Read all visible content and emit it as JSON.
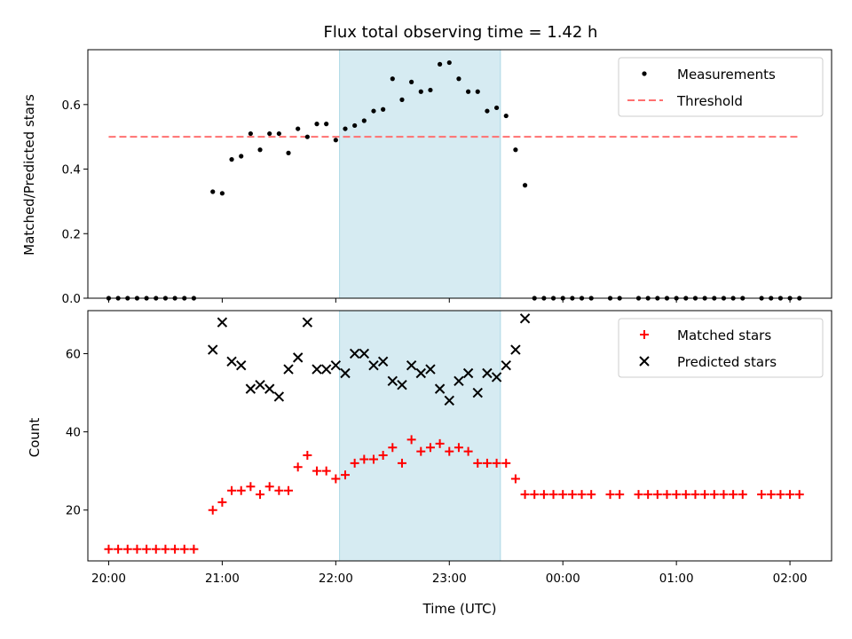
{
  "chart_data": [
    {
      "type": "scatter",
      "title": "Flux total observing time = 1.42 h",
      "xlabel": "",
      "ylabel": "Matched/Predicted stars",
      "xlim": [
        "19:49",
        "02:22"
      ],
      "ylim": [
        0,
        0.77
      ],
      "yticks": [
        0.0,
        0.2,
        0.4,
        0.6
      ],
      "ytick_labels": [
        "0.0",
        "0.2",
        "0.4",
        "0.6"
      ],
      "xticks": [
        "20:00",
        "21:00",
        "22:00",
        "23:00",
        "00:00",
        "01:00",
        "02:00"
      ],
      "shaded_interval": {
        "start": "22:02",
        "end": "23:27",
        "color": "#add8e6"
      },
      "legend": {
        "position": "upper right",
        "entries": [
          "Measurements",
          "Threshold"
        ]
      },
      "series": [
        {
          "name": "Measurements",
          "marker": "dot",
          "color": "#000000",
          "points": [
            [
              "20:00",
              0.0
            ],
            [
              "20:05",
              0.0
            ],
            [
              "20:10",
              0.0
            ],
            [
              "20:15",
              0.0
            ],
            [
              "20:20",
              0.0
            ],
            [
              "20:25",
              0.0
            ],
            [
              "20:30",
              0.0
            ],
            [
              "20:35",
              0.0
            ],
            [
              "20:40",
              0.0
            ],
            [
              "20:45",
              0.0
            ],
            [
              "20:55",
              0.33
            ],
            [
              "21:00",
              0.325
            ],
            [
              "21:05",
              0.43
            ],
            [
              "21:10",
              0.44
            ],
            [
              "21:15",
              0.51
            ],
            [
              "21:20",
              0.46
            ],
            [
              "21:25",
              0.51
            ],
            [
              "21:30",
              0.51
            ],
            [
              "21:35",
              0.45
            ],
            [
              "21:40",
              0.525
            ],
            [
              "21:45",
              0.5
            ],
            [
              "21:50",
              0.54
            ],
            [
              "21:55",
              0.54
            ],
            [
              "22:00",
              0.49
            ],
            [
              "22:05",
              0.525
            ],
            [
              "22:10",
              0.535
            ],
            [
              "22:15",
              0.55
            ],
            [
              "22:20",
              0.58
            ],
            [
              "22:25",
              0.585
            ],
            [
              "22:30",
              0.68
            ],
            [
              "22:35",
              0.615
            ],
            [
              "22:40",
              0.67
            ],
            [
              "22:45",
              0.64
            ],
            [
              "22:50",
              0.645
            ],
            [
              "22:55",
              0.725
            ],
            [
              "23:00",
              0.73
            ],
            [
              "23:05",
              0.68
            ],
            [
              "23:10",
              0.64
            ],
            [
              "23:15",
              0.64
            ],
            [
              "23:20",
              0.58
            ],
            [
              "23:25",
              0.59
            ],
            [
              "23:30",
              0.565
            ],
            [
              "23:35",
              0.46
            ],
            [
              "23:40",
              0.35
            ],
            [
              "23:45",
              0.0
            ],
            [
              "23:50",
              0.0
            ],
            [
              "23:55",
              0.0
            ],
            [
              "00:00",
              0.0
            ],
            [
              "00:05",
              0.0
            ],
            [
              "00:10",
              0.0
            ],
            [
              "00:15",
              0.0
            ],
            [
              "00:25",
              0.0
            ],
            [
              "00:30",
              0.0
            ],
            [
              "00:40",
              0.0
            ],
            [
              "00:45",
              0.0
            ],
            [
              "00:50",
              0.0
            ],
            [
              "00:55",
              0.0
            ],
            [
              "01:00",
              0.0
            ],
            [
              "01:05",
              0.0
            ],
            [
              "01:10",
              0.0
            ],
            [
              "01:15",
              0.0
            ],
            [
              "01:20",
              0.0
            ],
            [
              "01:25",
              0.0
            ],
            [
              "01:30",
              0.0
            ],
            [
              "01:35",
              0.0
            ],
            [
              "01:45",
              0.0
            ],
            [
              "01:50",
              0.0
            ],
            [
              "01:55",
              0.0
            ],
            [
              "02:00",
              0.0
            ],
            [
              "02:05",
              0.0
            ]
          ]
        },
        {
          "name": "Threshold",
          "type": "line",
          "style": "dashed",
          "color": "#ff7070",
          "points": [
            [
              "20:00",
              0.5
            ],
            [
              "02:05",
              0.5
            ]
          ]
        }
      ]
    },
    {
      "type": "scatter",
      "title": "",
      "xlabel": "Time (UTC)",
      "ylabel": "Count",
      "xlim": [
        "19:49",
        "02:22"
      ],
      "ylim": [
        7,
        71
      ],
      "yticks": [
        20,
        40,
        60
      ],
      "ytick_labels": [
        "20",
        "40",
        "60"
      ],
      "xticks": [
        "20:00",
        "21:00",
        "22:00",
        "23:00",
        "00:00",
        "01:00",
        "02:00"
      ],
      "xtick_labels": [
        "20:00",
        "21:00",
        "22:00",
        "23:00",
        "00:00",
        "01:00",
        "02:00"
      ],
      "shaded_interval": {
        "start": "22:02",
        "end": "23:27",
        "color": "#add8e6"
      },
      "legend": {
        "position": "upper right",
        "entries": [
          "Matched stars",
          "Predicted stars"
        ]
      },
      "series": [
        {
          "name": "Matched stars",
          "marker": "plus",
          "color": "#ff0000",
          "points": [
            [
              "20:00",
              10
            ],
            [
              "20:05",
              10
            ],
            [
              "20:10",
              10
            ],
            [
              "20:15",
              10
            ],
            [
              "20:20",
              10
            ],
            [
              "20:25",
              10
            ],
            [
              "20:30",
              10
            ],
            [
              "20:35",
              10
            ],
            [
              "20:40",
              10
            ],
            [
              "20:45",
              10
            ],
            [
              "20:55",
              20
            ],
            [
              "21:00",
              22
            ],
            [
              "21:05",
              25
            ],
            [
              "21:10",
              25
            ],
            [
              "21:15",
              26
            ],
            [
              "21:20",
              24
            ],
            [
              "21:25",
              26
            ],
            [
              "21:30",
              25
            ],
            [
              "21:35",
              25
            ],
            [
              "21:40",
              31
            ],
            [
              "21:45",
              34
            ],
            [
              "21:50",
              30
            ],
            [
              "21:55",
              30
            ],
            [
              "22:00",
              28
            ],
            [
              "22:05",
              29
            ],
            [
              "22:10",
              32
            ],
            [
              "22:15",
              33
            ],
            [
              "22:20",
              33
            ],
            [
              "22:25",
              34
            ],
            [
              "22:30",
              36
            ],
            [
              "22:35",
              32
            ],
            [
              "22:40",
              38
            ],
            [
              "22:45",
              35
            ],
            [
              "22:50",
              36
            ],
            [
              "22:55",
              37
            ],
            [
              "23:00",
              35
            ],
            [
              "23:05",
              36
            ],
            [
              "23:10",
              35
            ],
            [
              "23:15",
              32
            ],
            [
              "23:20",
              32
            ],
            [
              "23:25",
              32
            ],
            [
              "23:30",
              32
            ],
            [
              "23:35",
              28
            ],
            [
              "23:40",
              24
            ],
            [
              "23:45",
              24
            ],
            [
              "23:50",
              24
            ],
            [
              "23:55",
              24
            ],
            [
              "00:00",
              24
            ],
            [
              "00:05",
              24
            ],
            [
              "00:10",
              24
            ],
            [
              "00:15",
              24
            ],
            [
              "00:25",
              24
            ],
            [
              "00:30",
              24
            ],
            [
              "00:40",
              24
            ],
            [
              "00:45",
              24
            ],
            [
              "00:50",
              24
            ],
            [
              "00:55",
              24
            ],
            [
              "01:00",
              24
            ],
            [
              "01:05",
              24
            ],
            [
              "01:10",
              24
            ],
            [
              "01:15",
              24
            ],
            [
              "01:20",
              24
            ],
            [
              "01:25",
              24
            ],
            [
              "01:30",
              24
            ],
            [
              "01:35",
              24
            ],
            [
              "01:45",
              24
            ],
            [
              "01:50",
              24
            ],
            [
              "01:55",
              24
            ],
            [
              "02:00",
              24
            ],
            [
              "02:05",
              24
            ]
          ]
        },
        {
          "name": "Predicted stars",
          "marker": "x",
          "color": "#000000",
          "points": [
            [
              "20:55",
              61
            ],
            [
              "21:00",
              68
            ],
            [
              "21:05",
              58
            ],
            [
              "21:10",
              57
            ],
            [
              "21:15",
              51
            ],
            [
              "21:20",
              52
            ],
            [
              "21:25",
              51
            ],
            [
              "21:30",
              49
            ],
            [
              "21:35",
              56
            ],
            [
              "21:40",
              59
            ],
            [
              "21:45",
              68
            ],
            [
              "21:50",
              56
            ],
            [
              "21:55",
              56
            ],
            [
              "22:00",
              57
            ],
            [
              "22:05",
              55
            ],
            [
              "22:10",
              60
            ],
            [
              "22:15",
              60
            ],
            [
              "22:20",
              57
            ],
            [
              "22:25",
              58
            ],
            [
              "22:30",
              53
            ],
            [
              "22:35",
              52
            ],
            [
              "22:40",
              57
            ],
            [
              "22:45",
              55
            ],
            [
              "22:50",
              56
            ],
            [
              "22:55",
              51
            ],
            [
              "23:00",
              48
            ],
            [
              "23:05",
              53
            ],
            [
              "23:10",
              55
            ],
            [
              "23:15",
              50
            ],
            [
              "23:20",
              55
            ],
            [
              "23:25",
              54
            ],
            [
              "23:30",
              57
            ],
            [
              "23:35",
              61
            ],
            [
              "23:40",
              69
            ]
          ]
        }
      ]
    }
  ]
}
